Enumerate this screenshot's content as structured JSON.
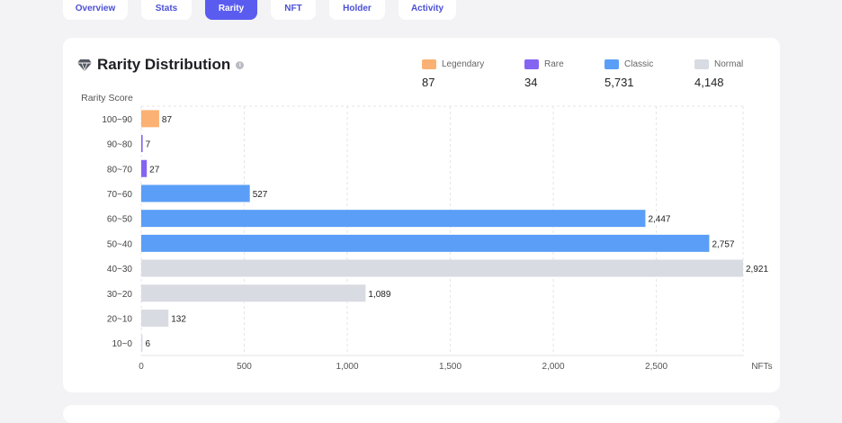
{
  "tabs": [
    {
      "label": "Overview",
      "active": false
    },
    {
      "label": "Stats",
      "active": false
    },
    {
      "label": "Rarity",
      "active": true
    },
    {
      "label": "NFT",
      "active": false
    },
    {
      "label": "Holder",
      "active": false
    },
    {
      "label": "Activity",
      "active": false
    }
  ],
  "card": {
    "title": "Rarity Distribution",
    "info_symbol": "i"
  },
  "legend": [
    {
      "name": "Legendary",
      "value": "87",
      "color": "#fbb173"
    },
    {
      "name": "Rare",
      "value": "34",
      "color": "#8365f2"
    },
    {
      "name": "Classic",
      "value": "5,731",
      "color": "#5b9ef7"
    },
    {
      "name": "Normal",
      "value": "4,148",
      "color": "#d9dbe3"
    }
  ],
  "chart_data": {
    "type": "bar",
    "orientation": "horizontal",
    "ylabel": "Rarity Score",
    "xlabel": "NFTs",
    "categories": [
      "100~90",
      "90~80",
      "80~70",
      "70~60",
      "60~50",
      "50~40",
      "40~30",
      "30~20",
      "20~10",
      "10~0"
    ],
    "values": [
      87,
      7,
      27,
      527,
      2447,
      2757,
      2921,
      1089,
      132,
      6
    ],
    "value_labels": [
      "87",
      "7",
      "27",
      "527",
      "2,447",
      "2,757",
      "2,921",
      "1,089",
      "132",
      "6"
    ],
    "bar_classes": [
      "Legendary",
      "Rare",
      "Rare",
      "Classic",
      "Classic",
      "Classic",
      "Normal",
      "Normal",
      "Normal",
      "Normal"
    ],
    "xlim": [
      0,
      2921
    ],
    "xticks": [
      0,
      500,
      1000,
      1500,
      2000,
      2500
    ],
    "xtick_labels": [
      "0",
      "500",
      "1,000",
      "1,500",
      "2,000",
      "2,500"
    ],
    "grid": "vertical dashed"
  }
}
